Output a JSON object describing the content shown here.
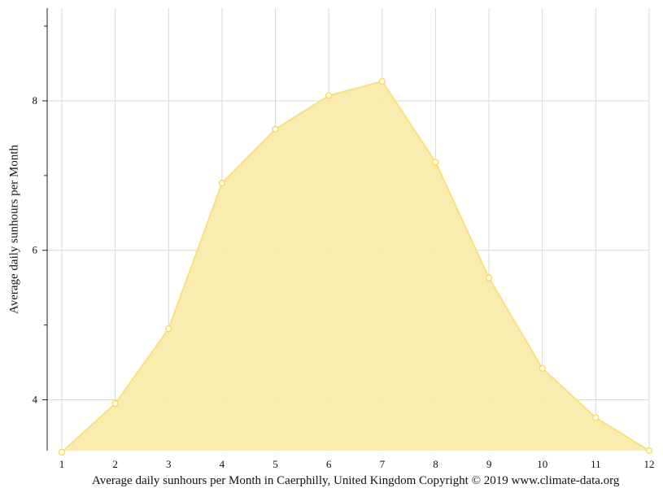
{
  "chart_data": {
    "type": "area",
    "x": [
      1,
      2,
      3,
      4,
      5,
      6,
      7,
      8,
      9,
      10,
      11,
      12
    ],
    "series": [
      {
        "values": [
          3.3,
          3.95,
          4.95,
          6.9,
          7.62,
          8.07,
          8.26,
          7.18,
          5.63,
          4.42,
          3.76,
          3.32
        ]
      }
    ],
    "xticks": [
      "1",
      "2",
      "3",
      "4",
      "5",
      "6",
      "7",
      "8",
      "9",
      "10",
      "11",
      "12"
    ],
    "yticks": [
      "4",
      "6",
      "8"
    ],
    "ylabel": "Average daily sunhours per Month",
    "caption": "Average daily sunhours per Month in Caerphilly, United Kingdom Copyright © 2019 www.climate-data.org",
    "ylim": [
      3.32,
      9.24
    ],
    "grid": true,
    "fill_color": "#f9eaa6",
    "line_color": "#f7e17e",
    "marker_fill": "#fffbe8"
  }
}
